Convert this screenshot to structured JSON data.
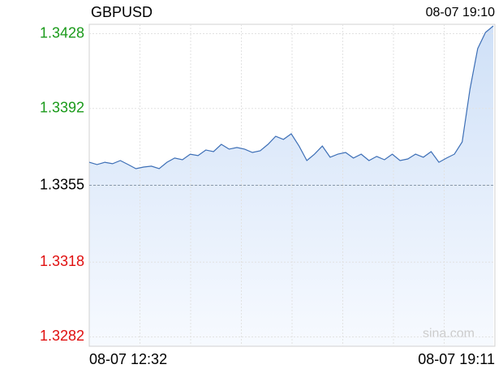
{
  "chart_data": {
    "type": "line",
    "title": "GBPUSD",
    "timestamp": "08-07 19:10",
    "watermark": "sina.com",
    "categories": [
      "08-07 12:32",
      null,
      null,
      null,
      null,
      null,
      null,
      null,
      null,
      null,
      null,
      null,
      null,
      null,
      null,
      null,
      null,
      null,
      null,
      null,
      null,
      null,
      null,
      null,
      null,
      null,
      null,
      null,
      null,
      null,
      null,
      null,
      null,
      null,
      null,
      null,
      null,
      null,
      null,
      null,
      null,
      null,
      null,
      null,
      null,
      null,
      null,
      null,
      null,
      null,
      null,
      null,
      "08-07 19:11"
    ],
    "series": [
      {
        "name": "GBPUSD",
        "color": "#3d6fb6",
        "values": [
          1.33661,
          1.3365,
          1.33661,
          1.33654,
          1.33669,
          1.3365,
          1.3363,
          1.33638,
          1.33642,
          1.3363,
          1.33661,
          1.33681,
          1.33673,
          1.337,
          1.33693,
          1.3372,
          1.33712,
          1.33747,
          1.33724,
          1.33732,
          1.33724,
          1.33708,
          1.33716,
          1.33747,
          1.33786,
          1.33771,
          1.33798,
          1.33739,
          1.33669,
          1.337,
          1.33739,
          1.33685,
          1.337,
          1.33708,
          1.33681,
          1.337,
          1.33669,
          1.33689,
          1.33673,
          1.337,
          1.33669,
          1.33677,
          1.337,
          1.33685,
          1.33712,
          1.33661,
          1.33681,
          1.337,
          1.33759,
          1.34013,
          1.34208,
          1.34286,
          1.34317
        ]
      }
    ],
    "ylim": [
      1.32775,
      1.34325
    ],
    "yticks": [
      1.3428,
      1.3392,
      1.3355,
      1.3318,
      1.3282
    ],
    "ytick_colors": [
      "#1a9a1a",
      "#1a9a1a",
      "#000000",
      "#e01010",
      "#e01010"
    ],
    "baseline": 1.3355,
    "grid": true
  }
}
